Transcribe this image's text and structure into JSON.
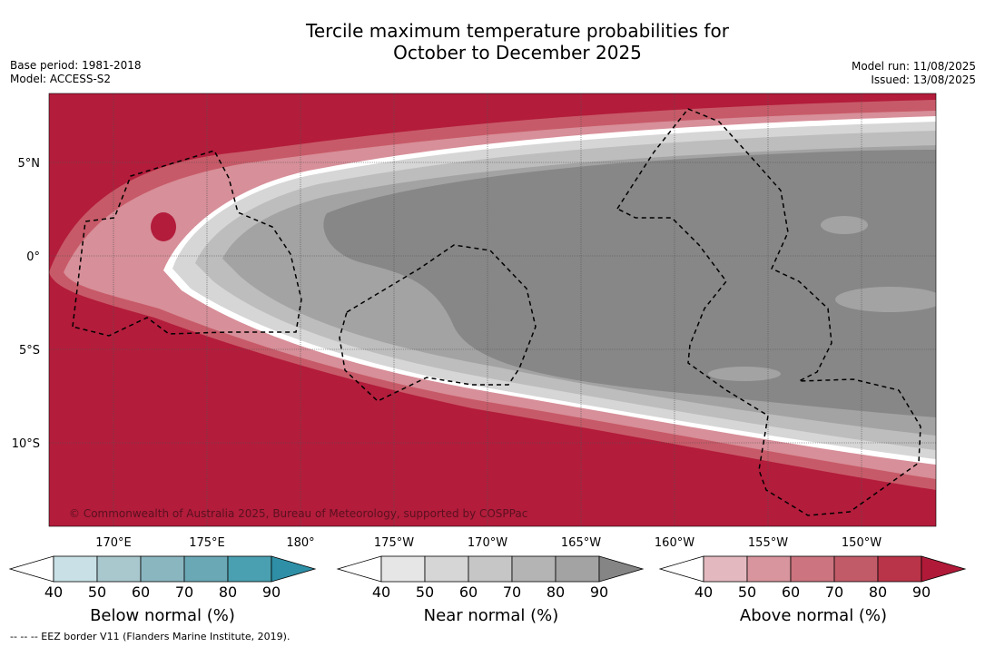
{
  "title": {
    "line1": "Tercile maximum temperature probabilities for",
    "line2": "October to December 2025"
  },
  "meta_left": {
    "base_period": "Base period: 1981-2018",
    "model": "Model: ACCESS-S2"
  },
  "meta_right": {
    "model_run": "Model run: 11/08/2025",
    "issued": "Issued: 13/08/2025"
  },
  "map": {
    "lat_labels": [
      "5°N",
      "0°",
      "5°S",
      "10°S"
    ],
    "lon_labels": [
      "170°E",
      "175°E",
      "180°",
      "175°W",
      "170°W",
      "165°W",
      "160°W",
      "155°W",
      "150°W"
    ],
    "copyright": "© Commonwealth of Australia 2025, Bureau of Meteorology, supported by COSPPac",
    "colors": {
      "above_90": "#b31c3b",
      "near_90": "#878787",
      "near_80": "#a3a3a3",
      "near_70": "#b8b8b8",
      "near_60": "#cfcfcf",
      "land": "#ffffff"
    }
  },
  "colorbars": [
    {
      "name": "below",
      "label": "Below normal (%)",
      "ticks": [
        "40",
        "50",
        "60",
        "70",
        "80",
        "90"
      ],
      "colors": [
        "#ffffff",
        "#c8e0e6",
        "#a8c8ce",
        "#8ab6c0",
        "#6aa8b6",
        "#4aa0b0",
        "#2e8fa6"
      ]
    },
    {
      "name": "near",
      "label": "Near normal (%)",
      "ticks": [
        "40",
        "50",
        "60",
        "70",
        "80",
        "90"
      ],
      "colors": [
        "#ffffff",
        "#e6e6e6",
        "#d6d6d6",
        "#c6c6c6",
        "#b4b4b4",
        "#a3a3a3",
        "#858585"
      ]
    },
    {
      "name": "above",
      "label": "Above normal (%)",
      "ticks": [
        "40",
        "50",
        "60",
        "70",
        "80",
        "90"
      ],
      "colors": [
        "#ffffff",
        "#e3b9bf",
        "#d8959d",
        "#cc747f",
        "#c25b68",
        "#b93448",
        "#b01a38"
      ]
    }
  ],
  "footnote": "--  --  -- EEZ border V11 (Flanders Marine Institute, 2019)."
}
